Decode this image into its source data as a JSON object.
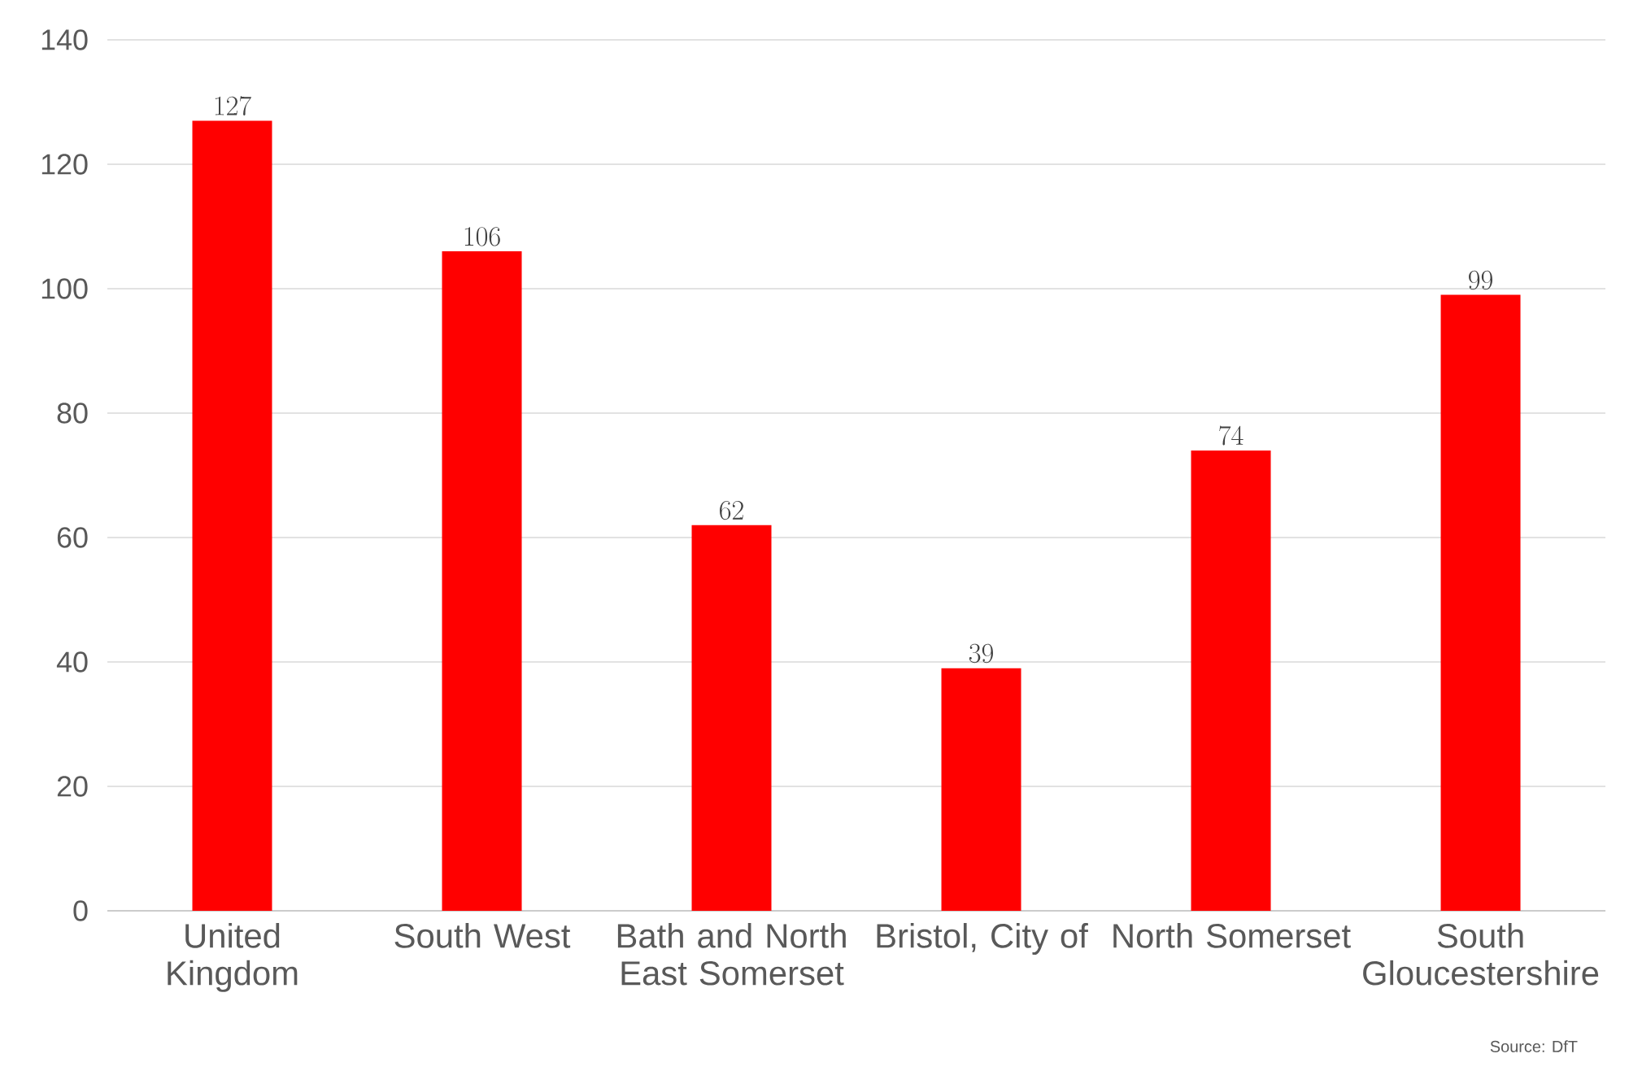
{
  "chart_data": {
    "type": "bar",
    "categories": [
      "United Kingdom",
      "South West",
      "Bath and North East Somerset",
      "Bristol, City of",
      "North Somerset",
      "South Gloucestershire"
    ],
    "values": [
      127,
      106,
      62,
      39,
      74,
      99
    ],
    "color": "#ff0000",
    "ylim": [
      0,
      140
    ],
    "yticks": [
      0,
      20,
      40,
      60,
      80,
      100,
      120,
      140
    ],
    "grid": "y",
    "data_labels": true,
    "annotations": [
      "Source: DfT"
    ]
  }
}
